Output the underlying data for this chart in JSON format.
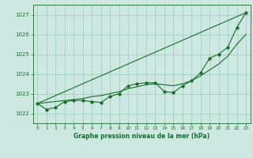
{
  "title": "Graphe pression niveau de la mer (hPa)",
  "background_color": "#cce8e0",
  "grid_color": "#99ccbe",
  "line_color": "#1a6b2e",
  "xlim": [
    -0.5,
    23.5
  ],
  "ylim": [
    1021.5,
    1027.5
  ],
  "yticks": [
    1022,
    1023,
    1024,
    1025,
    1026,
    1027
  ],
  "xticks": [
    0,
    1,
    2,
    3,
    4,
    5,
    6,
    7,
    8,
    9,
    10,
    11,
    12,
    13,
    14,
    15,
    16,
    17,
    18,
    19,
    20,
    21,
    22,
    23
  ],
  "hourly_data": [
    1022.5,
    1022.2,
    1022.3,
    1022.6,
    1022.65,
    1022.65,
    1022.6,
    1022.55,
    1022.85,
    1023.0,
    1023.4,
    1023.5,
    1023.55,
    1023.55,
    1023.1,
    1023.05,
    1023.4,
    1023.65,
    1024.05,
    1024.8,
    1025.0,
    1025.35,
    1026.35,
    1027.1
  ],
  "straight_line": [
    [
      0,
      1022.5
    ],
    [
      23,
      1027.1
    ]
  ],
  "trend_line": [
    1022.5,
    1022.55,
    1022.6,
    1022.65,
    1022.7,
    1022.75,
    1022.85,
    1022.9,
    1023.0,
    1023.1,
    1023.25,
    1023.35,
    1023.45,
    1023.5,
    1023.45,
    1023.4,
    1023.5,
    1023.65,
    1023.9,
    1024.2,
    1024.5,
    1024.9,
    1025.5,
    1026.0
  ]
}
